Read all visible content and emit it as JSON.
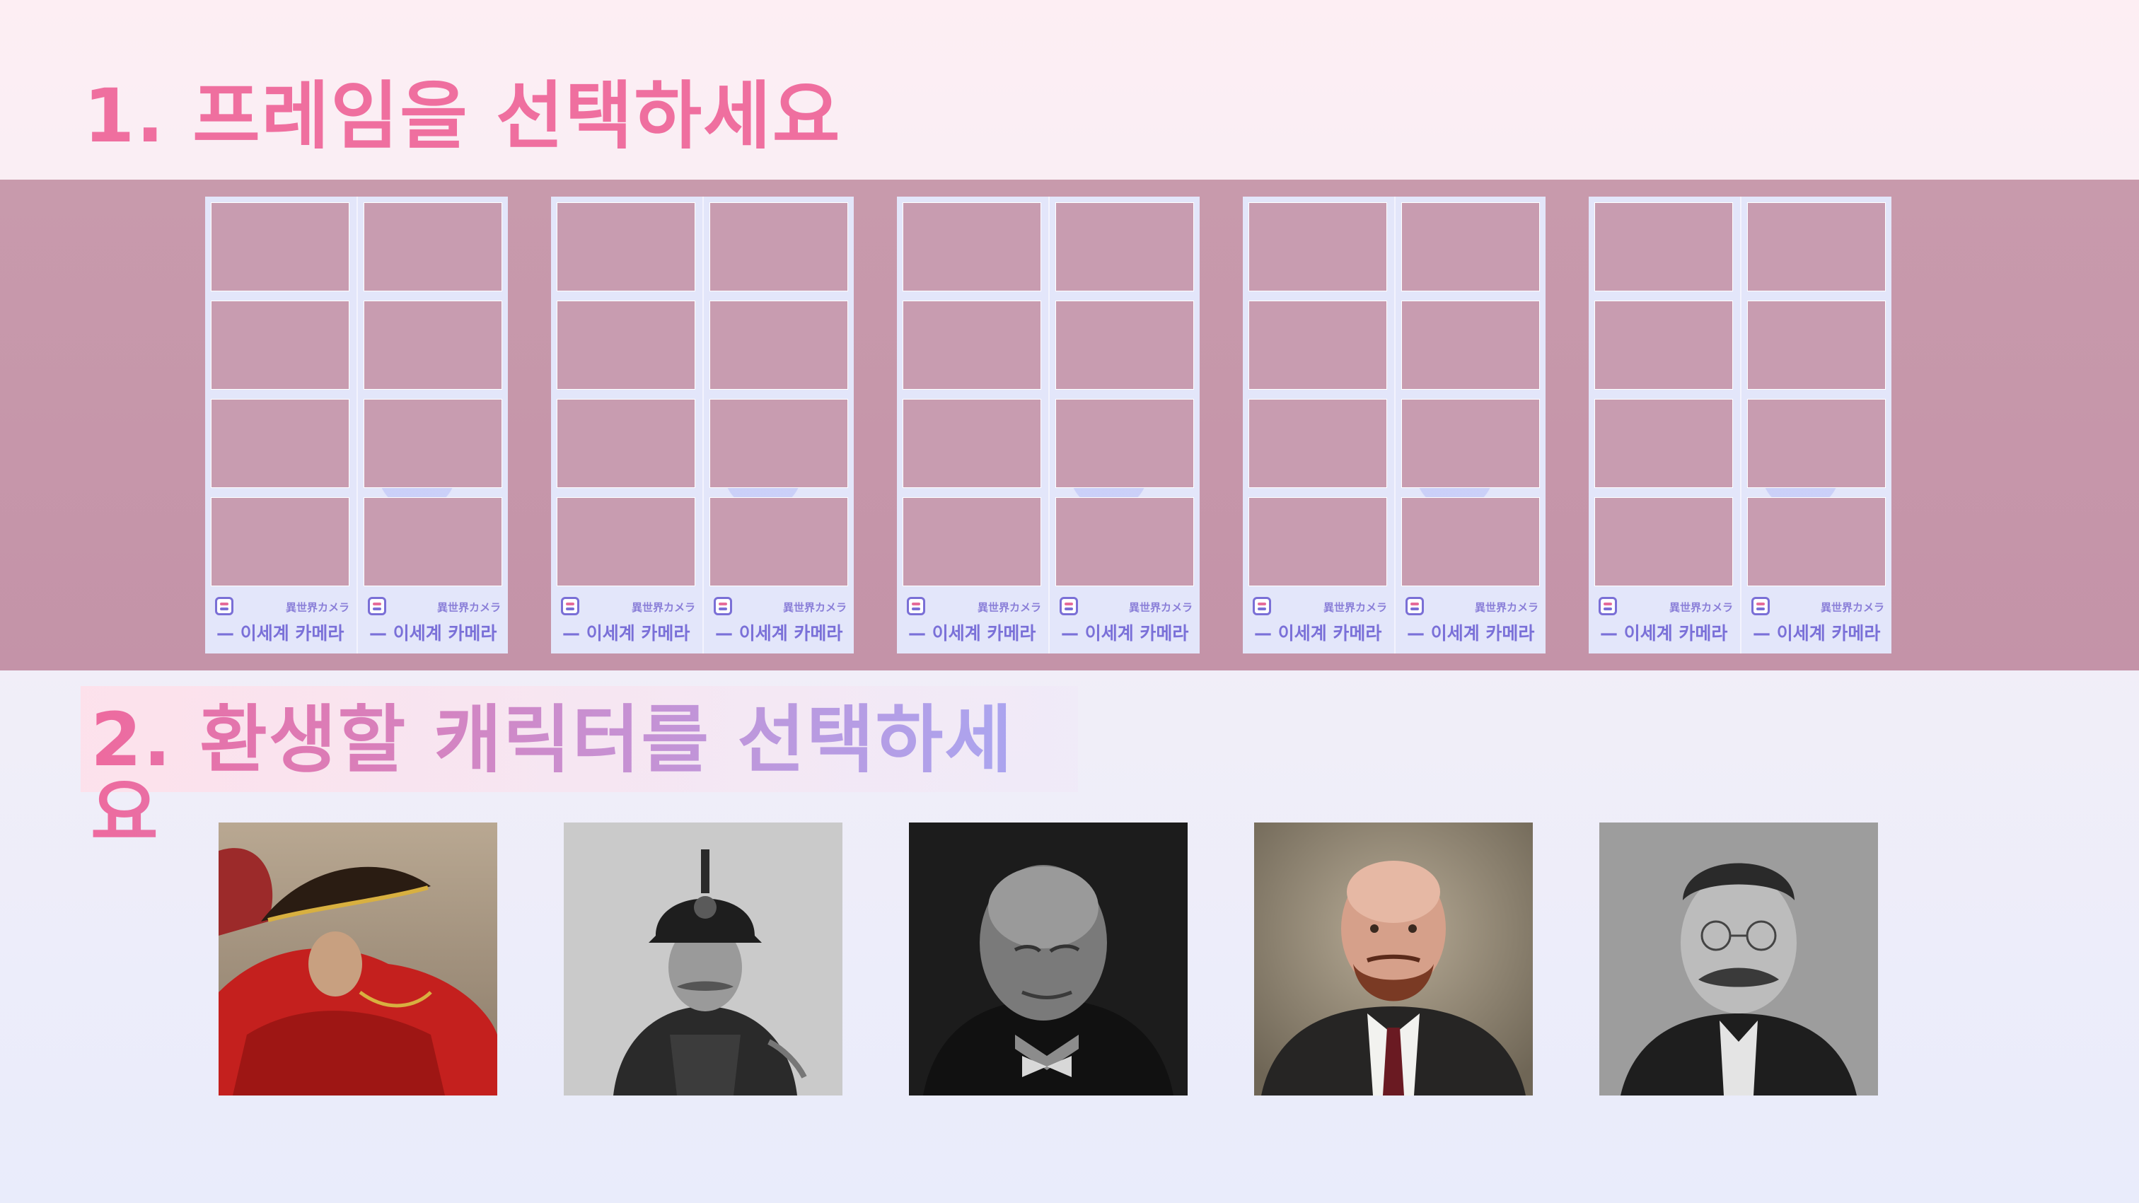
{
  "step1": {
    "title": "1. 프레임을 선택하세요"
  },
  "step2": {
    "title": "2. 환생할 캐릭터를 선택하세요"
  },
  "frames": [
    {
      "brand_jp": "異世界カメラ",
      "brand_kr": "— 이세계 카메라"
    },
    {
      "brand_jp": "異世界カメラ",
      "brand_kr": "— 이세계 카메라"
    },
    {
      "brand_jp": "異世界カメラ",
      "brand_kr": "— 이세계 카메라"
    },
    {
      "brand_jp": "異世界カメラ",
      "brand_kr": "— 이세계 카메라"
    },
    {
      "brand_jp": "異世界カメラ",
      "brand_kr": "— 이세계 카메라"
    }
  ],
  "characters": [
    {
      "icon": "bicorne-hat-red-cloak-portrait"
    },
    {
      "icon": "spiked-helmet-officer-portrait"
    },
    {
      "icon": "bald-statesman-bowtie-portrait"
    },
    {
      "icon": "bald-bearded-man-color-portrait"
    },
    {
      "icon": "mustache-spectacles-portrait"
    }
  ],
  "colors": {
    "accent_pink": "#ef6f9f",
    "accent_lavender": "#a6a8f4",
    "band": "#c89aac",
    "frame_bg": "#e3e6fa",
    "brand_purple": "#7a70d8"
  }
}
